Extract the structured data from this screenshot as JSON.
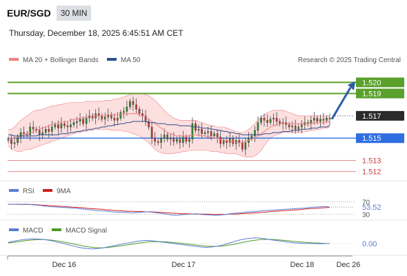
{
  "header": {
    "symbol": "EUR/SGD",
    "timeframe": "30 MIN",
    "datetime": "Thursday, December 18, 2025 6:45:51 AM CET"
  },
  "colors": {
    "bollinger": "#f08080",
    "bollinger_fill": "#fbd9d9",
    "ma50": "#2a4f8c",
    "resistance": "#5aa02c",
    "support": "#2f6ee0",
    "minor": "#e8898b",
    "rsi": "#5b7bd5",
    "rsi_ma": "#d11d1d",
    "macd": "#5b7bd5",
    "macd_signal": "#4f9a24",
    "arrow": "#2a5ca8"
  },
  "chart_data": [
    {
      "type": "line",
      "panel": "price",
      "legend": [
        "MA 20 + Bollinger Bands",
        "MA 50"
      ],
      "legend_position": "top-left",
      "copyright": "Research © 2025 Trading Central",
      "ylim": [
        1.5113,
        1.5212
      ],
      "x_ticks": [
        "Dec 16",
        "Dec 17",
        "Dec 18",
        "Dec 26"
      ],
      "levels": [
        {
          "value": 1.52,
          "label": "1.520",
          "kind": "resistance"
        },
        {
          "value": 1.519,
          "label": "1.519",
          "kind": "resistance"
        },
        {
          "value": 1.517,
          "label": "1.517",
          "kind": "last"
        },
        {
          "value": 1.515,
          "label": "1.515",
          "kind": "support"
        },
        {
          "value": 1.513,
          "label": "1.513",
          "kind": "minor"
        },
        {
          "value": 1.512,
          "label": "1.512",
          "kind": "minor"
        }
      ],
      "close": [
        1.5149,
        1.5145,
        1.5146,
        1.5151,
        1.5155,
        1.5154,
        1.5153,
        1.516,
        1.5158,
        1.5157,
        1.5153,
        1.5155,
        1.5158,
        1.5156,
        1.516,
        1.5162,
        1.5159,
        1.5163,
        1.5161,
        1.516,
        1.5162,
        1.5164,
        1.5165,
        1.5167,
        1.5163,
        1.5168,
        1.517,
        1.5168,
        1.5172,
        1.517,
        1.5167,
        1.5169,
        1.5171,
        1.5168,
        1.5166,
        1.5168,
        1.5173,
        1.5174,
        1.5178,
        1.5183,
        1.518,
        1.5176,
        1.5172,
        1.517,
        1.5165,
        1.516,
        1.515,
        1.5147,
        1.5146,
        1.515,
        1.5153,
        1.5149,
        1.515,
        1.5147,
        1.5149,
        1.5146,
        1.5151,
        1.5147,
        1.5149,
        1.5163,
        1.5157,
        1.5158,
        1.5154,
        1.5155,
        1.5156,
        1.5152,
        1.5154,
        1.5151,
        1.5145,
        1.5148,
        1.5146,
        1.515,
        1.5145,
        1.5148,
        1.5146,
        1.514,
        1.5146,
        1.515,
        1.5152,
        1.5157,
        1.5164,
        1.5168,
        1.5166,
        1.5164,
        1.5167,
        1.5168,
        1.5165,
        1.5163,
        1.5164,
        1.5162,
        1.516,
        1.5161,
        1.5158,
        1.516,
        1.5162,
        1.5164,
        1.5163,
        1.5166,
        1.5168,
        1.5165,
        1.5167,
        1.5166,
        1.5168,
        1.5167
      ],
      "bb_upper": [
        1.5158,
        1.5158,
        1.516,
        1.5163,
        1.5166,
        1.5168,
        1.517,
        1.5172,
        1.5174,
        1.5175,
        1.5175,
        1.5176,
        1.5177,
        1.5178,
        1.5179,
        1.5179,
        1.518,
        1.518,
        1.5181,
        1.5181,
        1.5182,
        1.5182,
        1.5182,
        1.5182,
        1.5182,
        1.5183,
        1.5183,
        1.5183,
        1.5183,
        1.5183,
        1.5183,
        1.5184,
        1.5184,
        1.5184,
        1.5185,
        1.5185,
        1.5186,
        1.5187,
        1.5188,
        1.5189,
        1.519,
        1.519,
        1.519,
        1.519,
        1.5189,
        1.5188,
        1.5186,
        1.5184,
        1.5181,
        1.5178,
        1.5175,
        1.5172,
        1.517,
        1.5168,
        1.5167,
        1.5166,
        1.5166,
        1.5166,
        1.5166,
        1.5166,
        1.5166,
        1.5165,
        1.5164,
        1.5163,
        1.5162,
        1.5161,
        1.5161,
        1.516,
        1.516,
        1.516,
        1.5159,
        1.5158,
        1.5157,
        1.5156,
        1.5155,
        1.5155,
        1.5156,
        1.5158,
        1.516,
        1.5163,
        1.5166,
        1.5169,
        1.5171,
        1.5173,
        1.5174,
        1.5175,
        1.5175,
        1.5175,
        1.5175,
        1.5174,
        1.5173,
        1.5172,
        1.5171,
        1.517,
        1.517,
        1.517,
        1.517,
        1.517,
        1.517,
        1.517,
        1.517,
        1.517,
        1.517,
        1.517
      ],
      "bb_lower": [
        1.5143,
        1.5141,
        1.5139,
        1.5138,
        1.5138,
        1.5139,
        1.514,
        1.514,
        1.5141,
        1.5142,
        1.5143,
        1.5144,
        1.5145,
        1.5146,
        1.5147,
        1.5148,
        1.5149,
        1.515,
        1.5151,
        1.5152,
        1.5153,
        1.5154,
        1.5155,
        1.5155,
        1.5156,
        1.5156,
        1.5157,
        1.5157,
        1.5158,
        1.5158,
        1.5158,
        1.5158,
        1.5158,
        1.5157,
        1.5157,
        1.5157,
        1.5157,
        1.5156,
        1.5156,
        1.5155,
        1.5154,
        1.5153,
        1.5152,
        1.515,
        1.5148,
        1.5146,
        1.5143,
        1.514,
        1.5138,
        1.5137,
        1.5136,
        1.5136,
        1.5136,
        1.5136,
        1.5137,
        1.5137,
        1.5138,
        1.5138,
        1.5139,
        1.5139,
        1.5139,
        1.5139,
        1.5139,
        1.5139,
        1.5139,
        1.5138,
        1.5138,
        1.5138,
        1.5137,
        1.5137,
        1.5136,
        1.5136,
        1.5136,
        1.5136,
        1.5135,
        1.5134,
        1.5133,
        1.5133,
        1.5133,
        1.5134,
        1.5136,
        1.5139,
        1.5143,
        1.5147,
        1.515,
        1.5152,
        1.5153,
        1.5154,
        1.5155,
        1.5155,
        1.5155,
        1.5155,
        1.5155,
        1.5155,
        1.5155,
        1.5156,
        1.5156,
        1.5157,
        1.5157,
        1.5158,
        1.5158,
        1.5159,
        1.5159,
        1.516
      ],
      "ma20": [
        1.515,
        1.515,
        1.515,
        1.5151,
        1.5152,
        1.5153,
        1.5154,
        1.5155,
        1.5156,
        1.5157,
        1.5158,
        1.5159,
        1.516,
        1.5161,
        1.5162,
        1.5163,
        1.5164,
        1.5164,
        1.5165,
        1.5165,
        1.5166,
        1.5167,
        1.5167,
        1.5168,
        1.5168,
        1.5169,
        1.5169,
        1.5169,
        1.517,
        1.517,
        1.517,
        1.517,
        1.5171,
        1.5171,
        1.5171,
        1.5171,
        1.5171,
        1.5172,
        1.5172,
        1.5172,
        1.5172,
        1.5172,
        1.5171,
        1.517,
        1.5169,
        1.5167,
        1.5165,
        1.5163,
        1.5161,
        1.5159,
        1.5157,
        1.5155,
        1.5154,
        1.5153,
        1.5152,
        1.5152,
        1.5152,
        1.5152,
        1.5152,
        1.5153,
        1.5153,
        1.5153,
        1.5152,
        1.5152,
        1.5151,
        1.5151,
        1.515,
        1.515,
        1.5149,
        1.5148,
        1.5148,
        1.5147,
        1.5147,
        1.5146,
        1.5146,
        1.5146,
        1.5147,
        1.5148,
        1.5149,
        1.515,
        1.5152,
        1.5154,
        1.5156,
        1.5158,
        1.516,
        1.5161,
        1.5162,
        1.5163,
        1.5163,
        1.5163,
        1.5163,
        1.5163,
        1.5163,
        1.5163,
        1.5163,
        1.5163,
        1.5163,
        1.5163,
        1.5164,
        1.5164,
        1.5164,
        1.5164,
        1.5165,
        1.5165
      ],
      "ma50": [
        1.5153,
        1.5153,
        1.5152,
        1.5152,
        1.5152,
        1.5152,
        1.5152,
        1.5152,
        1.5152,
        1.5152,
        1.5153,
        1.5153,
        1.5153,
        1.5153,
        1.5153,
        1.5153,
        1.5153,
        1.5154,
        1.5154,
        1.5154,
        1.5155,
        1.5155,
        1.5156,
        1.5156,
        1.5157,
        1.5157,
        1.5158,
        1.5158,
        1.5159,
        1.5159,
        1.516,
        1.516,
        1.5161,
        1.5161,
        1.5162,
        1.5162,
        1.5163,
        1.5163,
        1.5164,
        1.5164,
        1.5165,
        1.5165,
        1.5165,
        1.5165,
        1.5165,
        1.5164,
        1.5164,
        1.5164,
        1.5163,
        1.5163,
        1.5163,
        1.5162,
        1.5162,
        1.5162,
        1.5162,
        1.5161,
        1.5161,
        1.5161,
        1.5161,
        1.516,
        1.516,
        1.516,
        1.5159,
        1.5159,
        1.5159,
        1.5158,
        1.5158,
        1.5157,
        1.5157,
        1.5156,
        1.5156,
        1.5155,
        1.5155,
        1.5154,
        1.5154,
        1.5153,
        1.5153,
        1.5153,
        1.5153,
        1.5153,
        1.5153,
        1.5153,
        1.5154,
        1.5154,
        1.5154,
        1.5155,
        1.5155,
        1.5155,
        1.5156,
        1.5156,
        1.5156,
        1.5157,
        1.5157,
        1.5157,
        1.5158,
        1.5158,
        1.5158,
        1.5159,
        1.5159,
        1.5159,
        1.516,
        1.516,
        1.516,
        1.5161
      ]
    },
    {
      "type": "line",
      "panel": "rsi",
      "legend": [
        "RSI",
        "9MA"
      ],
      "ylim": [
        25,
        75
      ],
      "ticks": [
        {
          "value": 70,
          "label": "70"
        },
        {
          "value": 30,
          "label": "30"
        }
      ],
      "last_label": "53.52",
      "rsi": [
        61,
        62,
        61,
        62,
        62,
        60,
        59,
        57,
        55,
        54,
        53,
        52,
        51,
        50,
        49,
        47,
        45,
        44,
        42,
        41,
        40,
        38,
        37,
        37,
        36,
        35,
        36,
        37,
        38,
        37,
        35,
        33,
        31,
        28,
        27,
        29,
        30,
        31,
        32,
        30,
        29,
        28,
        27,
        28,
        30,
        32,
        34,
        35,
        37,
        38,
        39,
        41,
        42,
        43,
        44,
        45,
        46,
        47,
        48,
        49,
        50,
        52,
        53,
        54,
        55,
        53
      ],
      "rsi_ma": [
        62,
        62,
        62,
        61,
        61,
        61,
        60,
        59,
        58,
        57,
        56,
        55,
        54,
        53,
        52,
        51,
        49,
        48,
        47,
        46,
        44,
        43,
        42,
        41,
        40,
        40,
        39,
        39,
        38,
        38,
        37,
        36,
        35,
        34,
        33,
        32,
        32,
        31,
        31,
        31,
        31,
        30,
        30,
        30,
        30,
        31,
        31,
        32,
        33,
        34,
        35,
        36,
        37,
        39,
        40,
        41,
        42,
        43,
        44,
        45,
        47,
        48,
        49,
        50,
        51,
        52
      ]
    },
    {
      "type": "line",
      "panel": "macd",
      "legend": [
        "MACD",
        "MACD Signal"
      ],
      "ylim": [
        -1.2,
        1.2
      ],
      "last_label": "0.00",
      "macd": [
        0.2,
        0.35,
        0.5,
        0.62,
        0.7,
        0.75,
        0.72,
        0.65,
        0.55,
        0.4,
        0.2,
        0.05,
        -0.15,
        -0.35,
        -0.55,
        -0.7,
        -0.8,
        -0.85,
        -0.8,
        -0.7,
        -0.55,
        -0.4,
        -0.25,
        -0.1,
        0.05,
        0.2,
        0.35,
        0.45,
        0.5,
        0.45,
        0.35,
        0.25,
        0.15,
        0.05,
        -0.05,
        -0.15,
        -0.25,
        -0.35,
        -0.45,
        -0.55,
        -0.6,
        -0.55,
        -0.45,
        -0.3,
        -0.1,
        0.15,
        0.4,
        0.6,
        0.75,
        0.85,
        0.9,
        0.85,
        0.75,
        0.6,
        0.5,
        0.4,
        0.3,
        0.2,
        0.1,
        0.05,
        0.0,
        0.02,
        0.0,
        -0.02,
        0.0,
        0.0
      ],
      "signal": [
        0.1,
        0.2,
        0.3,
        0.4,
        0.5,
        0.58,
        0.62,
        0.63,
        0.6,
        0.52,
        0.4,
        0.28,
        0.14,
        -0.02,
        -0.2,
        -0.36,
        -0.5,
        -0.6,
        -0.66,
        -0.66,
        -0.62,
        -0.54,
        -0.44,
        -0.34,
        -0.22,
        -0.1,
        0.02,
        0.14,
        0.24,
        0.3,
        0.32,
        0.3,
        0.26,
        0.2,
        0.12,
        0.04,
        -0.05,
        -0.14,
        -0.23,
        -0.32,
        -0.4,
        -0.44,
        -0.44,
        -0.4,
        -0.32,
        -0.2,
        -0.05,
        0.12,
        0.28,
        0.42,
        0.54,
        0.62,
        0.66,
        0.65,
        0.62,
        0.56,
        0.49,
        0.41,
        0.33,
        0.26,
        0.19,
        0.14,
        0.1,
        0.06,
        0.03,
        0.0
      ]
    }
  ]
}
